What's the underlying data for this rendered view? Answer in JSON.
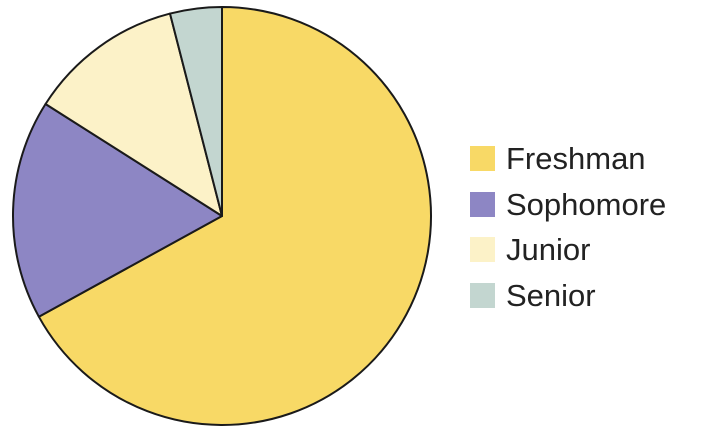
{
  "chart_data": {
    "type": "pie",
    "categories": [
      "Freshman",
      "Sophomore",
      "Junior",
      "Senior"
    ],
    "values": [
      67,
      17,
      12,
      4
    ],
    "colors": [
      "#f8d966",
      "#8d86c4",
      "#fcf2c8",
      "#c3d6d0"
    ],
    "title": "",
    "legend_placement": "right",
    "start_angle": "12 o'clock",
    "direction": "clockwise"
  }
}
